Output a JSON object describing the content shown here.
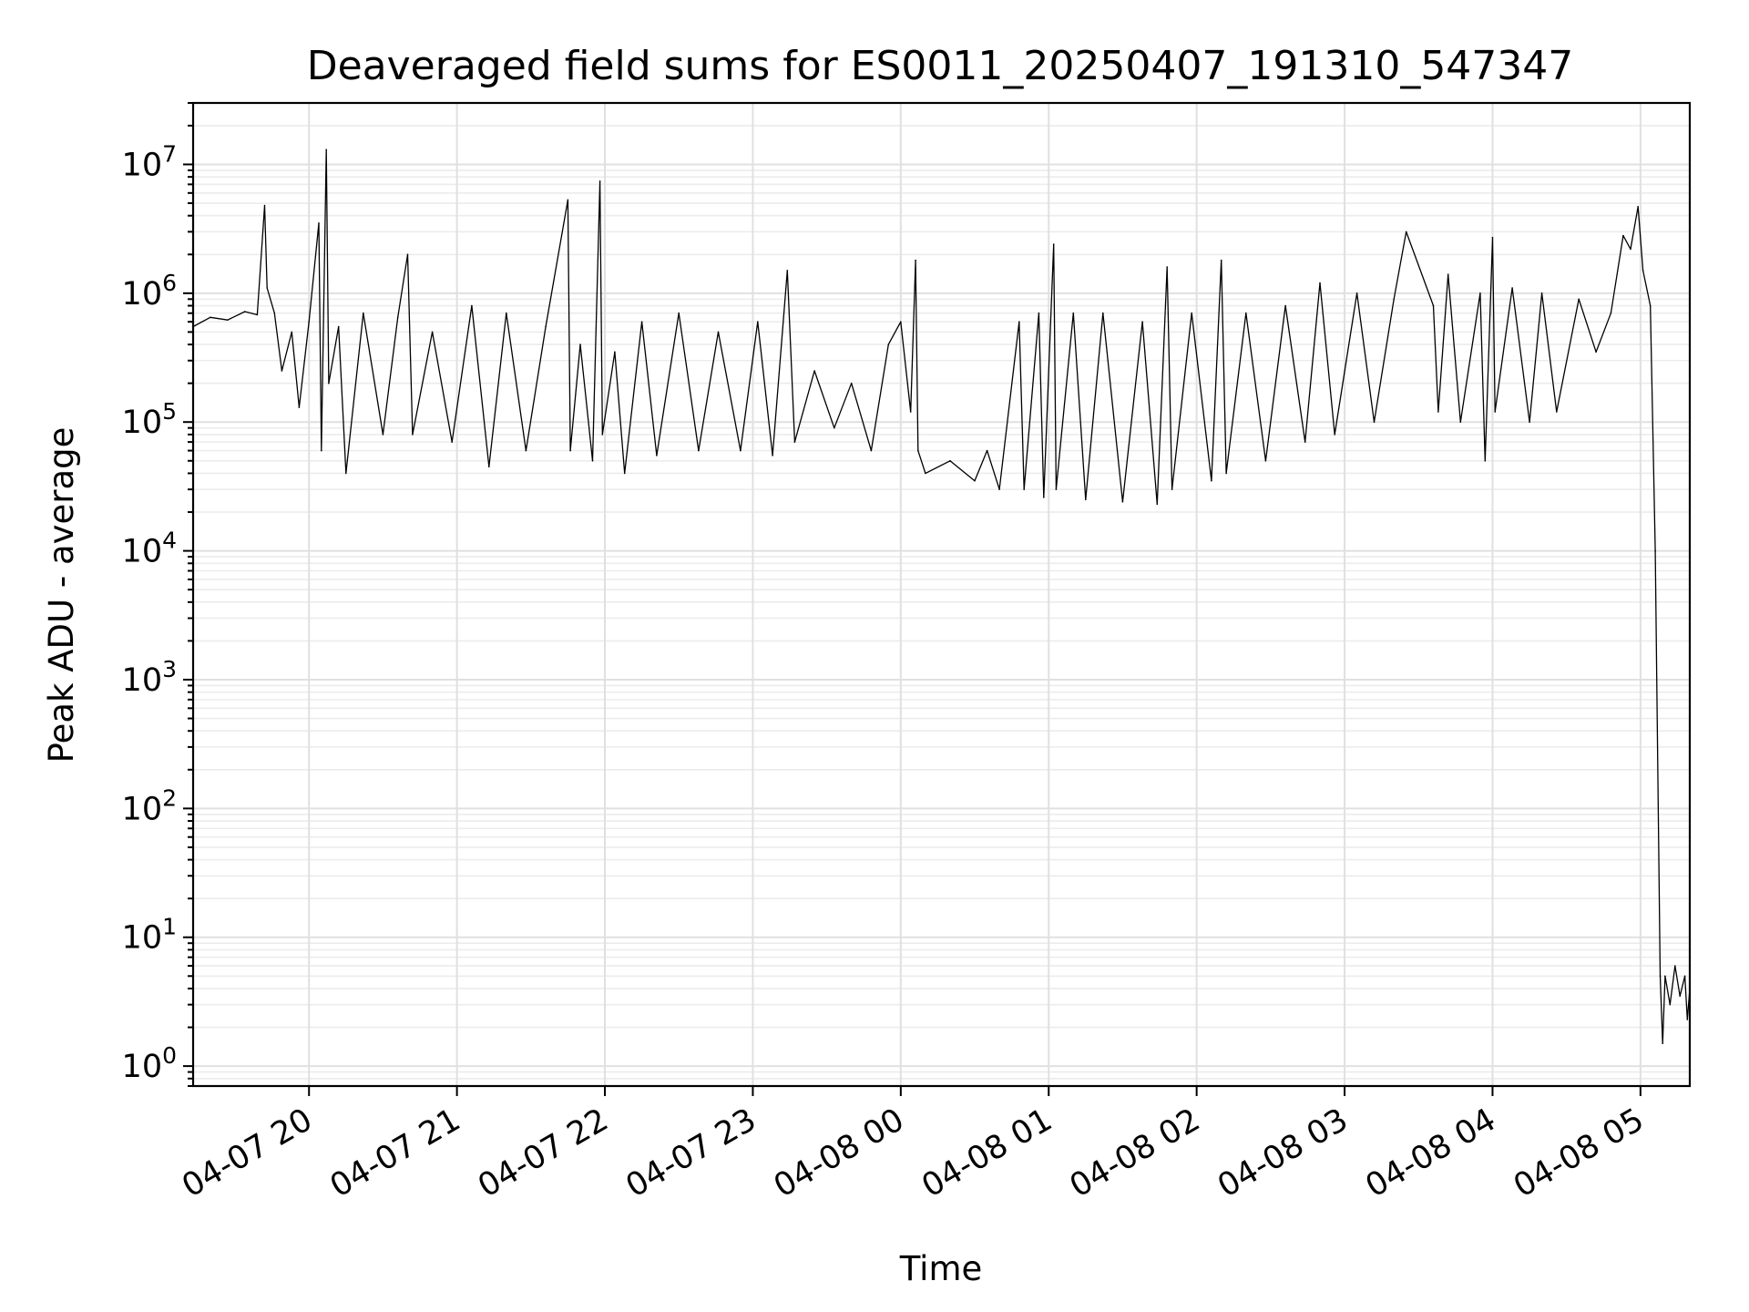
{
  "chart_data": {
    "type": "line",
    "title": "Deaveraged field sums for ES0011_20250407_191310_547347",
    "xlabel": "Time",
    "ylabel": "Peak ADU - average",
    "yscale": "log",
    "ylim": [
      0.7,
      30000000
    ],
    "xlim": [
      "2025-04-07 19:13",
      "2025-04-08 05:20"
    ],
    "grid": "on",
    "legend": "none",
    "x_tick_labels": [
      "04-07 20",
      "04-07 21",
      "04-07 22",
      "04-07 23",
      "04-08 00",
      "04-08 01",
      "04-08 02",
      "04-08 03",
      "04-08 04",
      "04-08 05"
    ],
    "x_tick_times": [
      "2025-04-07 20:00",
      "2025-04-07 21:00",
      "2025-04-07 22:00",
      "2025-04-07 23:00",
      "2025-04-08 00:00",
      "2025-04-08 01:00",
      "2025-04-08 02:00",
      "2025-04-08 03:00",
      "2025-04-08 04:00",
      "2025-04-08 05:00"
    ],
    "y_ticks": [
      {
        "value": 1,
        "base": "10",
        "exp": "0"
      },
      {
        "value": 10,
        "base": "10",
        "exp": "1"
      },
      {
        "value": 100,
        "base": "10",
        "exp": "2"
      },
      {
        "value": 1000,
        "base": "10",
        "exp": "3"
      },
      {
        "value": 10000,
        "base": "10",
        "exp": "4"
      },
      {
        "value": 100000,
        "base": "10",
        "exp": "5"
      },
      {
        "value": 1000000,
        "base": "10",
        "exp": "6"
      },
      {
        "value": 10000000,
        "base": "10",
        "exp": "7"
      }
    ],
    "series": [
      {
        "color": "#000000",
        "points": [
          [
            "2025-04-07 19:13",
            550000
          ],
          [
            "2025-04-07 19:20",
            650000
          ],
          [
            "2025-04-07 19:27",
            620000
          ],
          [
            "2025-04-07 19:34",
            720000
          ],
          [
            "2025-04-07 19:39",
            680000
          ],
          [
            "2025-04-07 19:42",
            4800000
          ],
          [
            "2025-04-07 19:43",
            1100000
          ],
          [
            "2025-04-07 19:46",
            700000
          ],
          [
            "2025-04-07 19:49",
            250000
          ],
          [
            "2025-04-07 19:53",
            500000
          ],
          [
            "2025-04-07 19:56",
            130000
          ],
          [
            "2025-04-07 20:00",
            600000
          ],
          [
            "2025-04-07 20:04",
            3500000
          ],
          [
            "2025-04-07 20:05",
            60000
          ],
          [
            "2025-04-07 20:07",
            13000000
          ],
          [
            "2025-04-07 20:08",
            200000
          ],
          [
            "2025-04-07 20:12",
            550000
          ],
          [
            "2025-04-07 20:15",
            40000
          ],
          [
            "2025-04-07 20:22",
            700000
          ],
          [
            "2025-04-07 20:30",
            80000
          ],
          [
            "2025-04-07 20:36",
            650000
          ],
          [
            "2025-04-07 20:40",
            2000000
          ],
          [
            "2025-04-07 20:42",
            80000
          ],
          [
            "2025-04-07 20:50",
            500000
          ],
          [
            "2025-04-07 20:58",
            70000
          ],
          [
            "2025-04-07 21:06",
            800000
          ],
          [
            "2025-04-07 21:13",
            45000
          ],
          [
            "2025-04-07 21:20",
            700000
          ],
          [
            "2025-04-07 21:28",
            60000
          ],
          [
            "2025-04-07 21:36",
            550000
          ],
          [
            "2025-04-07 21:45",
            5300000
          ],
          [
            "2025-04-07 21:46",
            60000
          ],
          [
            "2025-04-07 21:50",
            400000
          ],
          [
            "2025-04-07 21:55",
            50000
          ],
          [
            "2025-04-07 21:58",
            7400000
          ],
          [
            "2025-04-07 21:59",
            80000
          ],
          [
            "2025-04-07 22:04",
            350000
          ],
          [
            "2025-04-07 22:08",
            40000
          ],
          [
            "2025-04-07 22:15",
            600000
          ],
          [
            "2025-04-07 22:21",
            55000
          ],
          [
            "2025-04-07 22:30",
            700000
          ],
          [
            "2025-04-07 22:38",
            60000
          ],
          [
            "2025-04-07 22:46",
            500000
          ],
          [
            "2025-04-07 22:55",
            60000
          ],
          [
            "2025-04-07 23:02",
            600000
          ],
          [
            "2025-04-07 23:08",
            55000
          ],
          [
            "2025-04-07 23:14",
            1500000
          ],
          [
            "2025-04-07 23:17",
            70000
          ],
          [
            "2025-04-07 23:25",
            250000
          ],
          [
            "2025-04-07 23:33",
            90000
          ],
          [
            "2025-04-07 23:40",
            200000
          ],
          [
            "2025-04-07 23:48",
            60000
          ],
          [
            "2025-04-07 23:55",
            400000
          ],
          [
            "2025-04-08 00:00",
            600000
          ],
          [
            "2025-04-08 00:04",
            120000
          ],
          [
            "2025-04-08 00:06",
            1800000
          ],
          [
            "2025-04-08 00:07",
            60000
          ],
          [
            "2025-04-08 00:10",
            40000
          ],
          [
            "2025-04-08 00:20",
            50000
          ],
          [
            "2025-04-08 00:30",
            35000
          ],
          [
            "2025-04-08 00:35",
            60000
          ],
          [
            "2025-04-08 00:40",
            30000
          ],
          [
            "2025-04-08 00:48",
            600000
          ],
          [
            "2025-04-08 00:50",
            30000
          ],
          [
            "2025-04-08 00:56",
            700000
          ],
          [
            "2025-04-08 00:58",
            26000
          ],
          [
            "2025-04-08 01:02",
            2400000
          ],
          [
            "2025-04-08 01:03",
            30000
          ],
          [
            "2025-04-08 01:10",
            700000
          ],
          [
            "2025-04-08 01:15",
            25000
          ],
          [
            "2025-04-08 01:22",
            700000
          ],
          [
            "2025-04-08 01:30",
            24000
          ],
          [
            "2025-04-08 01:38",
            600000
          ],
          [
            "2025-04-08 01:44",
            23000
          ],
          [
            "2025-04-08 01:48",
            1600000
          ],
          [
            "2025-04-08 01:50",
            30000
          ],
          [
            "2025-04-08 01:58",
            700000
          ],
          [
            "2025-04-08 02:06",
            35000
          ],
          [
            "2025-04-08 02:10",
            1800000
          ],
          [
            "2025-04-08 02:12",
            40000
          ],
          [
            "2025-04-08 02:20",
            700000
          ],
          [
            "2025-04-08 02:28",
            50000
          ],
          [
            "2025-04-08 02:36",
            800000
          ],
          [
            "2025-04-08 02:44",
            70000
          ],
          [
            "2025-04-08 02:50",
            1200000
          ],
          [
            "2025-04-08 02:56",
            80000
          ],
          [
            "2025-04-08 03:05",
            1000000
          ],
          [
            "2025-04-08 03:12",
            100000
          ],
          [
            "2025-04-08 03:20",
            900000
          ],
          [
            "2025-04-08 03:25",
            3000000
          ],
          [
            "2025-04-08 03:36",
            800000
          ],
          [
            "2025-04-08 03:38",
            120000
          ],
          [
            "2025-04-08 03:42",
            1400000
          ],
          [
            "2025-04-08 03:47",
            100000
          ],
          [
            "2025-04-08 03:55",
            1000000
          ],
          [
            "2025-04-08 03:57",
            50000
          ],
          [
            "2025-04-08 04:00",
            2700000
          ],
          [
            "2025-04-08 04:01",
            120000
          ],
          [
            "2025-04-08 04:08",
            1100000
          ],
          [
            "2025-04-08 04:15",
            100000
          ],
          [
            "2025-04-08 04:20",
            1000000
          ],
          [
            "2025-04-08 04:26",
            120000
          ],
          [
            "2025-04-08 04:35",
            900000
          ],
          [
            "2025-04-08 04:42",
            350000
          ],
          [
            "2025-04-08 04:48",
            700000
          ],
          [
            "2025-04-08 04:53",
            2800000
          ],
          [
            "2025-04-08 04:56",
            2200000
          ],
          [
            "2025-04-08 04:59",
            4700000
          ],
          [
            "2025-04-08 05:01",
            1500000
          ],
          [
            "2025-04-08 05:04",
            800000
          ],
          [
            "2025-04-08 05:06",
            10000
          ],
          [
            "2025-04-08 05:08",
            5
          ],
          [
            "2025-04-08 05:09",
            1.5
          ],
          [
            "2025-04-08 05:10",
            5
          ],
          [
            "2025-04-08 05:12",
            3
          ],
          [
            "2025-04-08 05:14",
            6
          ],
          [
            "2025-04-08 05:16",
            3.5
          ],
          [
            "2025-04-08 05:18",
            5
          ],
          [
            "2025-04-08 05:19",
            2.3
          ],
          [
            "2025-04-08 05:20",
            4
          ]
        ]
      }
    ]
  }
}
